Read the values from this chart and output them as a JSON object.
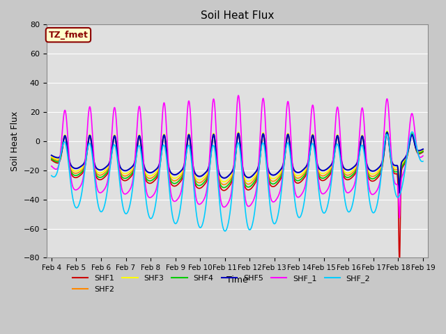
{
  "title": "Soil Heat Flux",
  "xlabel": "Time",
  "ylabel": "Soil Heat Flux",
  "ylim": [
    -80,
    80
  ],
  "xtick_labels": [
    "Feb 4",
    "Feb 5",
    "Feb 6",
    "Feb 7",
    "Feb 8",
    "Feb 9",
    "Feb 10",
    "Feb 11",
    "Feb 12",
    "Feb 13",
    "Feb 14",
    "Feb 15",
    "Feb 16",
    "Feb 17",
    "Feb 18",
    "Feb 19"
  ],
  "series_names": [
    "SHF1",
    "SHF2",
    "SHF3",
    "SHF4",
    "SHF5",
    "SHF_1",
    "SHF_2"
  ],
  "series_colors": [
    "#cc0000",
    "#ff8800",
    "#ffff00",
    "#00cc00",
    "#0000bb",
    "#ff00ff",
    "#00ccff"
  ],
  "series_lw": [
    1.2,
    1.2,
    1.2,
    1.2,
    1.5,
    1.2,
    1.2
  ],
  "annotation_text": "TZ_fmet",
  "annotation_bg": "#ffffcc",
  "annotation_border": "#8b0000",
  "fig_bg": "#c8c8c8",
  "plot_bg": "#e0e0e0",
  "grid_color": "white",
  "yticks": [
    -80,
    -60,
    -40,
    -20,
    0,
    20,
    40,
    60,
    80
  ],
  "n_days": 15,
  "n_per_day": 96,
  "day_peak_amplitudes": [
    0.78,
    0.88,
    0.88,
    0.92,
    1.0,
    1.05,
    1.1,
    1.15,
    1.08,
    1.0,
    0.92,
    0.88,
    0.88,
    0.95,
    0.55
  ]
}
